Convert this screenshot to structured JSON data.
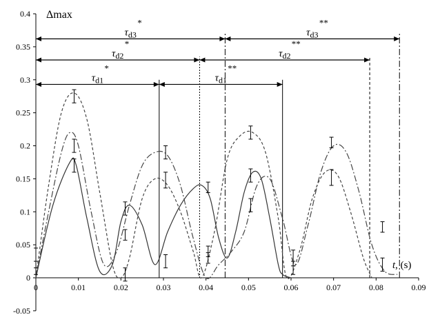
{
  "chart_data": {
    "type": "line",
    "ylabel": "Δmax",
    "xlabel_var": "t",
    "xlabel_unit": ", (s)",
    "xlim": [
      0,
      0.09
    ],
    "ylim": [
      -0.05,
      0.4
    ],
    "x_ticks": [
      "0",
      "0.01",
      "0.02",
      "0.03",
      "0.04",
      "0.05",
      "0.06",
      "0.07",
      "0.08",
      "0.09"
    ],
    "y_ticks": [
      "-0.05",
      "0",
      "0.05",
      "0.1",
      "0.15",
      "0.2",
      "0.25",
      "0.3",
      "0.35",
      "0.4"
    ],
    "series": [
      {
        "style": "solid",
        "x": [
          0,
          0.004,
          0.008,
          0.0095,
          0.012,
          0.015,
          0.018,
          0.02,
          0.022,
          0.025,
          0.028,
          0.031,
          0.034,
          0.037,
          0.039,
          0.041,
          0.043,
          0.045,
          0.047,
          0.049,
          0.051,
          0.053,
          0.055,
          0.057,
          0.058,
          0.06
        ],
        "y": [
          0.0,
          0.11,
          0.175,
          0.17,
          0.09,
          0.01,
          0.02,
          0.085,
          0.11,
          0.08,
          0.02,
          0.07,
          0.11,
          0.135,
          0.14,
          0.12,
          0.06,
          0.03,
          0.07,
          0.13,
          0.16,
          0.15,
          0.09,
          0.02,
          0.005,
          0.0
        ]
      },
      {
        "style": "dashed",
        "x": [
          0,
          0.003,
          0.006,
          0.009,
          0.012,
          0.015,
          0.018,
          0.02,
          0.022,
          0.025,
          0.028,
          0.031,
          0.034,
          0.037,
          0.039,
          0.042,
          0.045,
          0.048,
          0.051,
          0.054,
          0.057,
          0.059,
          0.062,
          0.065,
          0.068,
          0.071,
          0.074,
          0.077,
          0.079
        ],
        "y": [
          0.0,
          0.14,
          0.25,
          0.28,
          0.24,
          0.13,
          0.02,
          0.0,
          0.03,
          0.12,
          0.15,
          0.14,
          0.1,
          0.04,
          0.0,
          0.07,
          0.18,
          0.215,
          0.22,
          0.19,
          0.09,
          0.0,
          0.04,
          0.12,
          0.16,
          0.155,
          0.1,
          0.03,
          0.0
        ]
      },
      {
        "style": "dashdot",
        "x": [
          0,
          0.003,
          0.006,
          0.008,
          0.01,
          0.013,
          0.016,
          0.019,
          0.022,
          0.025,
          0.028,
          0.031,
          0.034,
          0.037,
          0.04,
          0.043,
          0.046,
          0.049,
          0.052,
          0.055,
          0.058,
          0.061,
          0.064,
          0.067,
          0.07,
          0.073,
          0.076,
          0.079,
          0.082,
          0.085
        ],
        "y": [
          0.0,
          0.1,
          0.19,
          0.22,
          0.2,
          0.1,
          0.02,
          0.04,
          0.11,
          0.17,
          0.19,
          0.185,
          0.14,
          0.06,
          0.0,
          0.02,
          0.04,
          0.07,
          0.14,
          0.15,
          0.09,
          0.02,
          0.08,
          0.16,
          0.2,
          0.19,
          0.13,
          0.05,
          0.01,
          0.005
        ]
      }
    ],
    "error_bars": [
      {
        "x": 0.0,
        "y": 0.03,
        "err": 0.015
      },
      {
        "x": 0.0,
        "y": 0.015,
        "err": 0.01
      },
      {
        "x": 0.009,
        "y": 0.275,
        "err": 0.01
      },
      {
        "x": 0.009,
        "y": 0.2,
        "err": 0.01
      },
      {
        "x": 0.009,
        "y": 0.17,
        "err": 0.01
      },
      {
        "x": 0.021,
        "y": 0.105,
        "err": 0.01
      },
      {
        "x": 0.021,
        "y": 0.065,
        "err": 0.008
      },
      {
        "x": 0.021,
        "y": 0.005,
        "err": 0.01
      },
      {
        "x": 0.0305,
        "y": 0.19,
        "err": 0.01
      },
      {
        "x": 0.0305,
        "y": 0.148,
        "err": 0.012
      },
      {
        "x": 0.0305,
        "y": 0.025,
        "err": 0.01
      },
      {
        "x": 0.0405,
        "y": 0.137,
        "err": 0.008
      },
      {
        "x": 0.0405,
        "y": 0.04,
        "err": 0.008
      },
      {
        "x": 0.0405,
        "y": 0.03,
        "err": 0.008
      },
      {
        "x": 0.0505,
        "y": 0.22,
        "err": 0.01
      },
      {
        "x": 0.0505,
        "y": 0.155,
        "err": 0.01
      },
      {
        "x": 0.0505,
        "y": 0.11,
        "err": 0.01
      },
      {
        "x": 0.0605,
        "y": 0.03,
        "err": 0.012
      },
      {
        "x": 0.0605,
        "y": 0.015,
        "err": 0.01
      },
      {
        "x": 0.0695,
        "y": 0.205,
        "err": 0.008
      },
      {
        "x": 0.0695,
        "y": 0.152,
        "err": 0.012
      },
      {
        "x": 0.0815,
        "y": 0.077,
        "err": 0.008
      },
      {
        "x": 0.0815,
        "y": 0.02,
        "err": 0.01
      }
    ],
    "vertical_lines": [
      {
        "x": 0.029,
        "style": "solid",
        "y_top": 0.3
      },
      {
        "x": 0.0385,
        "style": "dotted",
        "y_top": 0.335
      },
      {
        "x": 0.0445,
        "style": "dashdot",
        "y_top": 0.37
      },
      {
        "x": 0.058,
        "style": "solid",
        "y_top": 0.3
      },
      {
        "x": 0.0785,
        "style": "dashed",
        "y_top": 0.335
      },
      {
        "x": 0.0855,
        "style": "dashdot",
        "y_top": 0.37
      }
    ],
    "intervals": [
      {
        "label": "τd3",
        "sup": "*",
        "x0": 0,
        "x1": 0.0445,
        "y": 0.362
      },
      {
        "label": "τd3",
        "sup": "**",
        "x0": 0.0445,
        "x1": 0.0855,
        "y": 0.362
      },
      {
        "label": "τd2",
        "sup": "*",
        "x0": 0,
        "x1": 0.0385,
        "y": 0.33
      },
      {
        "label": "τd2",
        "sup": "**",
        "x0": 0.0385,
        "x1": 0.0785,
        "y": 0.33
      },
      {
        "label": "τd1",
        "sup": "*",
        "x0": 0,
        "x1": 0.029,
        "y": 0.293
      },
      {
        "label": "τd1",
        "sup": "**",
        "x0": 0.029,
        "x1": 0.058,
        "y": 0.293
      }
    ]
  }
}
